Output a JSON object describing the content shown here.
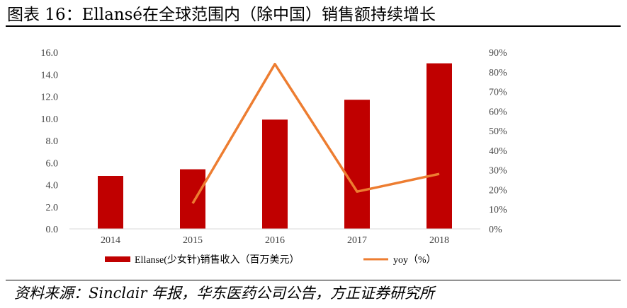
{
  "header": {
    "title": "图表 16：Ellansé在全球范围内（除中国）销售额持续增长"
  },
  "footer": {
    "source": "资料来源：Sinclair 年报，华东医药公司公告，方正证券研究所"
  },
  "chart_data": {
    "type": "bar",
    "categories": [
      "2014",
      "2015",
      "2016",
      "2017",
      "2018"
    ],
    "series": [
      {
        "name": "Ellanse(少女针)销售收入（百万美元）",
        "type": "bar",
        "axis": "left",
        "color": "#c00000",
        "values": [
          4.8,
          5.4,
          9.9,
          11.7,
          15.0
        ]
      },
      {
        "name": "yoy（%）",
        "type": "line",
        "axis": "right",
        "color": "#ed7d31",
        "values": [
          null,
          13,
          84,
          19,
          28
        ]
      }
    ],
    "y_left": {
      "min": 0,
      "max": 16,
      "step": 2,
      "ticks": [
        "0.0",
        "2.0",
        "4.0",
        "6.0",
        "8.0",
        "10.0",
        "12.0",
        "14.0",
        "16.0"
      ]
    },
    "y_right": {
      "min": 0,
      "max": 90,
      "step": 10,
      "ticks": [
        "0%",
        "10%",
        "20%",
        "30%",
        "40%",
        "50%",
        "60%",
        "70%",
        "80%",
        "90%"
      ]
    },
    "grid": false,
    "legend_position": "bottom"
  }
}
